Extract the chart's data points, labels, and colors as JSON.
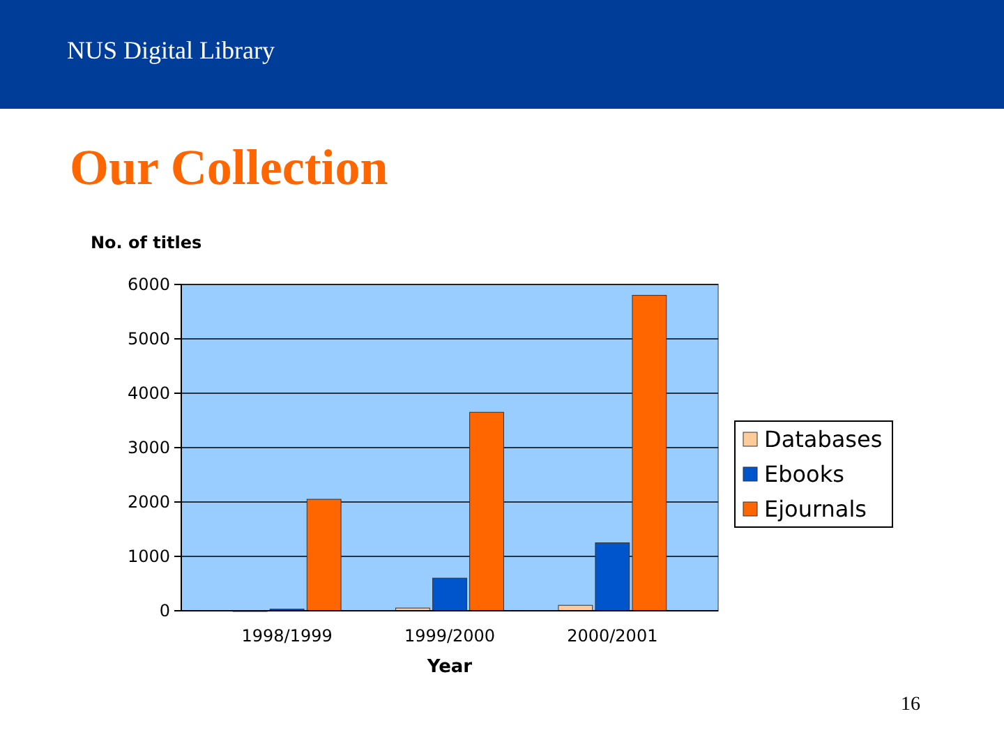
{
  "chart_data": {
    "type": "bar",
    "title": "Our Collection",
    "ylabel": "No. of titles",
    "xlabel": "Year",
    "categories": [
      "1998/1999",
      "1999/2000",
      "2000/2001"
    ],
    "series": [
      {
        "name": "Databases",
        "color": "#ffcc99",
        "values": [
          0,
          50,
          100
        ]
      },
      {
        "name": "Ebooks",
        "color": "#0055cc",
        "values": [
          30,
          600,
          1250
        ]
      },
      {
        "name": "Ejournals",
        "color": "#ff6600",
        "values": [
          2050,
          3650,
          5800
        ]
      }
    ],
    "ylim": [
      0,
      6000
    ],
    "yticks": [
      0,
      1000,
      2000,
      3000,
      4000,
      5000,
      6000
    ],
    "grid": "y",
    "legend": "right",
    "annotations": [
      "NUS Digital Library",
      "16"
    ]
  }
}
